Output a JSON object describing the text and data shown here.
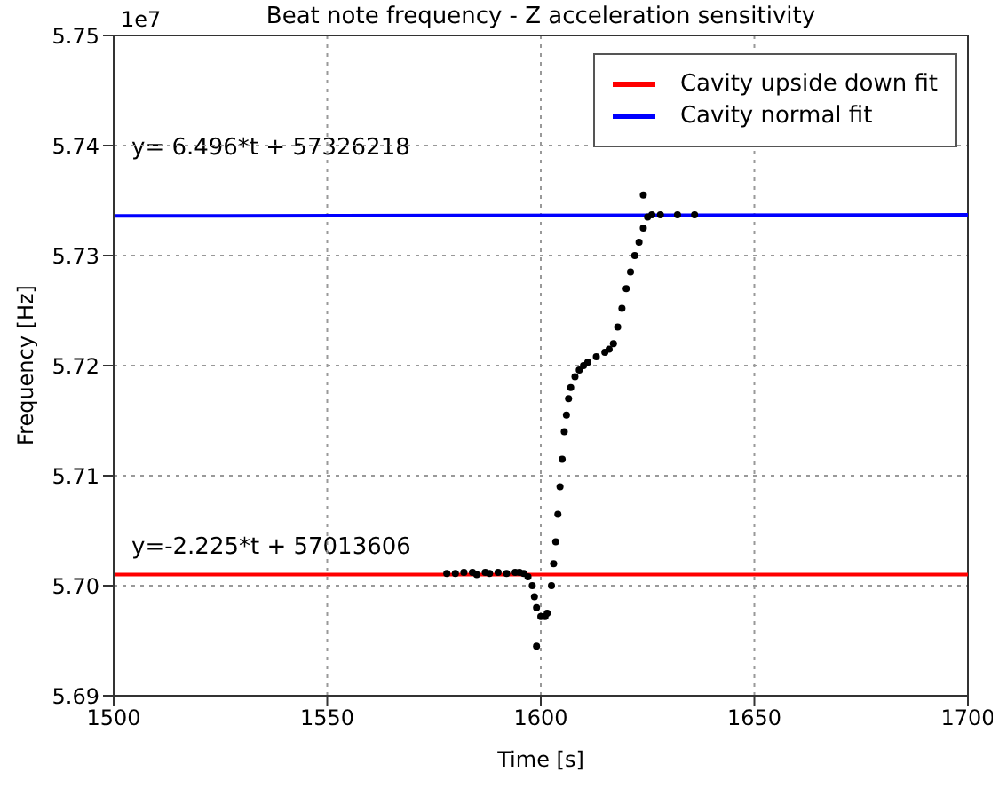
{
  "chart_data": {
    "type": "scatter",
    "title": "Beat note frequency - Z acceleration sensitivity",
    "xlabel": "Time [s]",
    "ylabel": "Frequency [Hz]",
    "xlim": [
      1500,
      1700
    ],
    "xticks": [
      1500,
      1550,
      1600,
      1650,
      1700
    ],
    "ylim": [
      5.69,
      5.75
    ],
    "yticks": [
      5.69,
      {
        "value": 5.7,
        "label": "5.70"
      },
      5.71,
      5.72,
      5.73,
      5.74,
      5.75
    ],
    "grid": true,
    "legend": "top right",
    "series": [
      {
        "color": "#000000",
        "marker": "circle",
        "x": [
          1578,
          1580,
          1582,
          1584,
          1585,
          1587,
          1588,
          1590,
          1592,
          1594,
          1595,
          1596,
          1597,
          1598,
          1598.5,
          1599,
          1599,
          1600,
          1601,
          1601.5,
          1602.5,
          1603,
          1603.5,
          1604,
          1604.5,
          1605,
          1605.5,
          1606,
          1606.5,
          1607,
          1608,
          1609,
          1610,
          1611,
          1613,
          1615,
          1616,
          1617,
          1618,
          1619,
          1620,
          1621,
          1622,
          1623,
          1624,
          1624,
          1625,
          1626,
          1628,
          1632,
          1636
        ],
        "values": [
          5.7011,
          5.7011,
          5.7012,
          5.7012,
          5.701,
          5.7012,
          5.7011,
          5.7012,
          5.7011,
          5.7012,
          5.7012,
          5.7011,
          5.7008,
          5.7,
          5.699,
          5.698,
          5.6945,
          5.6972,
          5.6972,
          5.6975,
          5.7,
          5.702,
          5.704,
          5.7065,
          5.709,
          5.7115,
          5.714,
          5.7155,
          5.717,
          5.718,
          5.719,
          5.7196,
          5.72,
          5.7203,
          5.7208,
          5.7212,
          5.7215,
          5.722,
          5.7235,
          5.7252,
          5.727,
          5.7285,
          5.73,
          5.7312,
          5.7325,
          5.7355,
          5.7335,
          5.7337,
          5.7337,
          5.7337,
          5.7337
        ]
      },
      {
        "type": "line",
        "name": "Cavity upside down fit",
        "color": "#ff0000",
        "x": [
          1500,
          1700
        ],
        "values": [
          5.701,
          5.701
        ]
      },
      {
        "type": "line",
        "name": "Cavity normal fit",
        "color": "#0000ff",
        "x": [
          1500,
          1700
        ],
        "values": [
          5.7336,
          5.7337
        ]
      }
    ],
    "annotations": [
      "1e7",
      "y= 6.496*t + 57326218",
      "y=-2.225*t + 57013606"
    ]
  }
}
